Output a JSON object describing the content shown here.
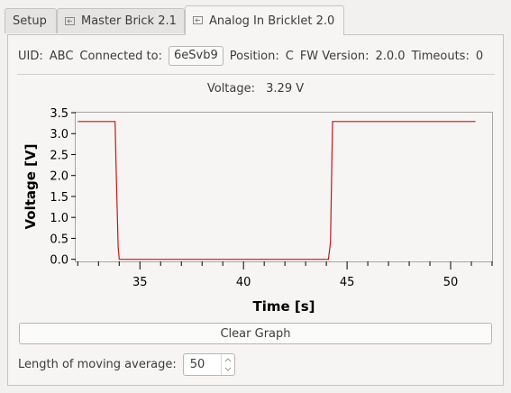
{
  "tabs": [
    {
      "label": "Setup",
      "icon": null
    },
    {
      "label": "Master Brick 2.1",
      "icon": "detach-icon"
    },
    {
      "label": "Analog In Bricklet 2.0",
      "icon": "detach-icon",
      "active": true
    }
  ],
  "info": {
    "uid_label": "UID:",
    "uid_value": "ABC",
    "connected_label": "Connected to:",
    "connected_value": "6eSvb9",
    "position_label": "Position:",
    "position_value": "C",
    "fw_label": "FW Version:",
    "fw_value": "2.0.0",
    "timeouts_label": "Timeouts:",
    "timeouts_value": "0"
  },
  "voltage": {
    "label": "Voltage:",
    "value": "3.29 V"
  },
  "chart_data": {
    "type": "line",
    "xlabel": "Time [s]",
    "ylabel": "Voltage [V]",
    "xlim": [
      31.9,
      52.0
    ],
    "ylim": [
      -0.05,
      3.5
    ],
    "xticks": [
      35,
      40,
      45,
      50
    ],
    "yticks": [
      0.0,
      0.5,
      1.0,
      1.5,
      2.0,
      2.5,
      3.0,
      3.5
    ],
    "grid": false,
    "series": [
      {
        "color": "#c01818",
        "x": [
          32.0,
          33.8,
          33.85,
          33.95,
          34.0,
          44.1,
          44.2,
          44.3,
          51.2
        ],
        "y": [
          3.29,
          3.29,
          2.2,
          0.3,
          0.0,
          0.0,
          0.4,
          3.29,
          3.29
        ]
      }
    ]
  },
  "clear_button": "Clear Graph",
  "moving_average": {
    "label": "Length of moving average:",
    "value": "50"
  }
}
